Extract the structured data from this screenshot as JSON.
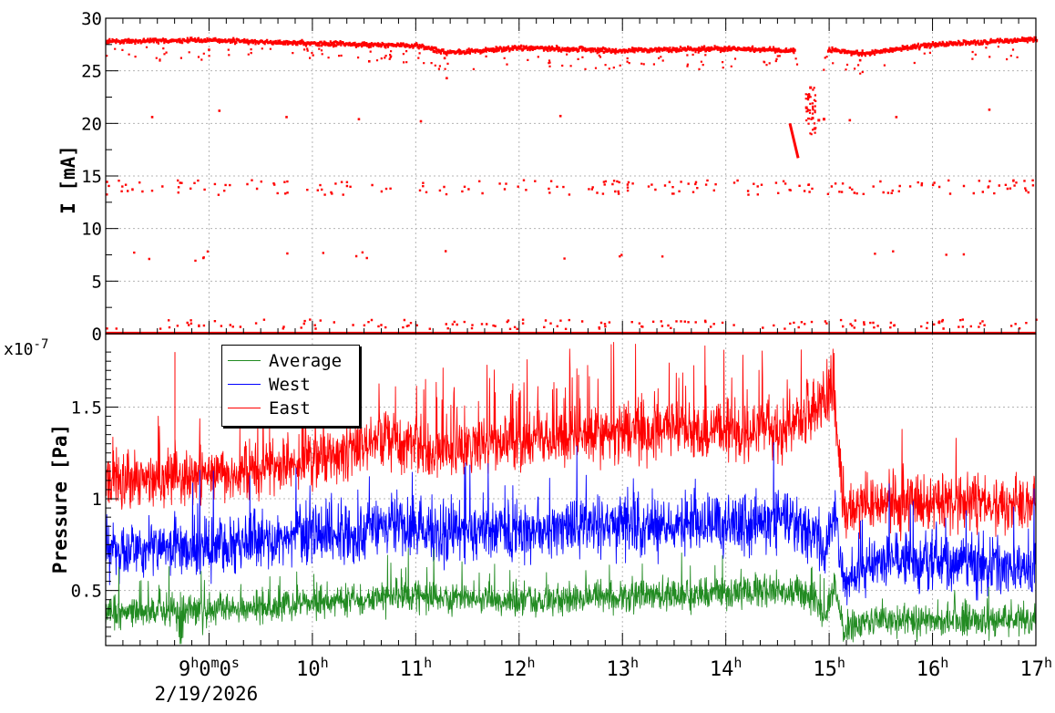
{
  "chart_data": [
    {
      "type": "scatter",
      "title": "",
      "ylabel": "I [mA]",
      "ylim": [
        0,
        30
      ],
      "yticks": [
        0,
        5,
        10,
        15,
        20,
        25,
        30
      ],
      "grid": true,
      "series": [
        {
          "color": "#ff0000",
          "baseline": [
            [
              8.0,
              27.8
            ],
            [
              9.0,
              27.9
            ],
            [
              10.0,
              27.6
            ],
            [
              11.0,
              27.4
            ],
            [
              11.3,
              26.7
            ],
            [
              12.0,
              27.2
            ],
            [
              13.0,
              26.9
            ],
            [
              14.0,
              27.1
            ],
            [
              14.7,
              26.9
            ],
            [
              15.0,
              27.0
            ],
            [
              15.3,
              26.6
            ],
            [
              16.0,
              27.5
            ],
            [
              17.0,
              28.0
            ]
          ],
          "bands": [
            0,
            1,
            7.5,
            14
          ],
          "dropout_segment": [
            [
              14.62,
              20.0
            ],
            [
              14.7,
              16.7
            ]
          ],
          "dropout_points": [
            [
              14.78,
              21.5
            ],
            [
              14.8,
              22.5
            ],
            [
              14.82,
              23.4
            ],
            [
              14.84,
              20.5
            ],
            [
              14.86,
              19.5
            ],
            [
              14.9,
              20.3
            ],
            [
              14.95,
              20.4
            ]
          ],
          "isolated_points": [
            [
              8.45,
              20.6
            ],
            [
              9.1,
              21.2
            ],
            [
              9.75,
              20.6
            ],
            [
              10.45,
              20.4
            ],
            [
              11.05,
              20.2
            ],
            [
              11.3,
              24.3
            ],
            [
              12.4,
              20.7
            ],
            [
              15.2,
              20.3
            ],
            [
              15.65,
              20.6
            ],
            [
              16.55,
              21.3
            ],
            [
              9.0,
              27.0
            ],
            [
              10.55,
              25.9
            ],
            [
              11.28,
              26.2
            ],
            [
              15.3,
              26.0
            ]
          ]
        }
      ]
    },
    {
      "type": "line",
      "title": "",
      "xlabel": "",
      "ylabel": "Pressure [Pa]",
      "y_multiplier": "x10",
      "y_exponent": "-7",
      "ylim": [
        0.2,
        1.9
      ],
      "yticks": [
        0.5,
        1,
        1.5
      ],
      "ytick_labels": [
        "0.5",
        "1",
        "1.5"
      ],
      "xlim": [
        8.0,
        17.0
      ],
      "xticks": [
        9,
        10,
        11,
        12,
        13,
        14,
        15,
        16,
        17
      ],
      "xtick_labels": [
        {
          "base": "9",
          "parts": [
            {
              "sup": "h"
            },
            {
              "txt": "0"
            },
            {
              "sup": "m"
            },
            {
              "txt": "0"
            },
            {
              "sup": "s"
            }
          ]
        },
        {
          "base": "10",
          "parts": [
            {
              "sup": "h"
            }
          ]
        },
        {
          "base": "11",
          "parts": [
            {
              "sup": "h"
            }
          ]
        },
        {
          "base": "12",
          "parts": [
            {
              "sup": "h"
            }
          ]
        },
        {
          "base": "13",
          "parts": [
            {
              "sup": "h"
            }
          ]
        },
        {
          "base": "14",
          "parts": [
            {
              "sup": "h"
            }
          ]
        },
        {
          "base": "15",
          "parts": [
            {
              "sup": "h"
            }
          ]
        },
        {
          "base": "16",
          "parts": [
            {
              "sup": "h"
            }
          ]
        },
        {
          "base": "17",
          "parts": [
            {
              "sup": "h"
            }
          ]
        }
      ],
      "date_label": "2/19/2026",
      "grid": true,
      "legend": "top-left",
      "series": [
        {
          "name": "Average",
          "color": "#228b22",
          "profile": [
            [
              8.0,
              0.38
            ],
            [
              9.0,
              0.39
            ],
            [
              9.7,
              0.42
            ],
            [
              10.3,
              0.44
            ],
            [
              10.8,
              0.47
            ],
            [
              11.2,
              0.46
            ],
            [
              12.0,
              0.44
            ],
            [
              13.0,
              0.47
            ],
            [
              14.0,
              0.48
            ],
            [
              14.6,
              0.5
            ],
            [
              14.85,
              0.47
            ],
            [
              14.95,
              0.35
            ],
            [
              15.05,
              0.52
            ],
            [
              15.15,
              0.28
            ],
            [
              15.4,
              0.33
            ],
            [
              16.0,
              0.34
            ],
            [
              17.0,
              0.34
            ]
          ],
          "noise": 0.07
        },
        {
          "name": "West",
          "color": "#0000ff",
          "profile": [
            [
              8.0,
              0.72
            ],
            [
              9.0,
              0.73
            ],
            [
              9.7,
              0.79
            ],
            [
              10.3,
              0.82
            ],
            [
              10.8,
              0.86
            ],
            [
              11.2,
              0.83
            ],
            [
              12.0,
              0.82
            ],
            [
              13.0,
              0.86
            ],
            [
              14.0,
              0.86
            ],
            [
              14.6,
              0.88
            ],
            [
              14.85,
              0.8
            ],
            [
              14.95,
              0.7
            ],
            [
              15.05,
              0.92
            ],
            [
              15.15,
              0.55
            ],
            [
              15.4,
              0.66
            ],
            [
              16.0,
              0.66
            ],
            [
              17.0,
              0.63
            ]
          ],
          "noise": 0.13
        },
        {
          "name": "East",
          "color": "#ff0000",
          "profile": [
            [
              8.0,
              1.1
            ],
            [
              9.0,
              1.14
            ],
            [
              9.7,
              1.18
            ],
            [
              10.3,
              1.25
            ],
            [
              10.8,
              1.33
            ],
            [
              11.2,
              1.27
            ],
            [
              12.0,
              1.3
            ],
            [
              13.0,
              1.37
            ],
            [
              14.0,
              1.36
            ],
            [
              14.6,
              1.36
            ],
            [
              14.85,
              1.5
            ],
            [
              14.95,
              1.55
            ],
            [
              15.05,
              1.55
            ],
            [
              15.15,
              0.9
            ],
            [
              15.4,
              0.98
            ],
            [
              16.0,
              0.98
            ],
            [
              17.0,
              0.98
            ]
          ],
          "noise": 0.13
        }
      ]
    }
  ]
}
